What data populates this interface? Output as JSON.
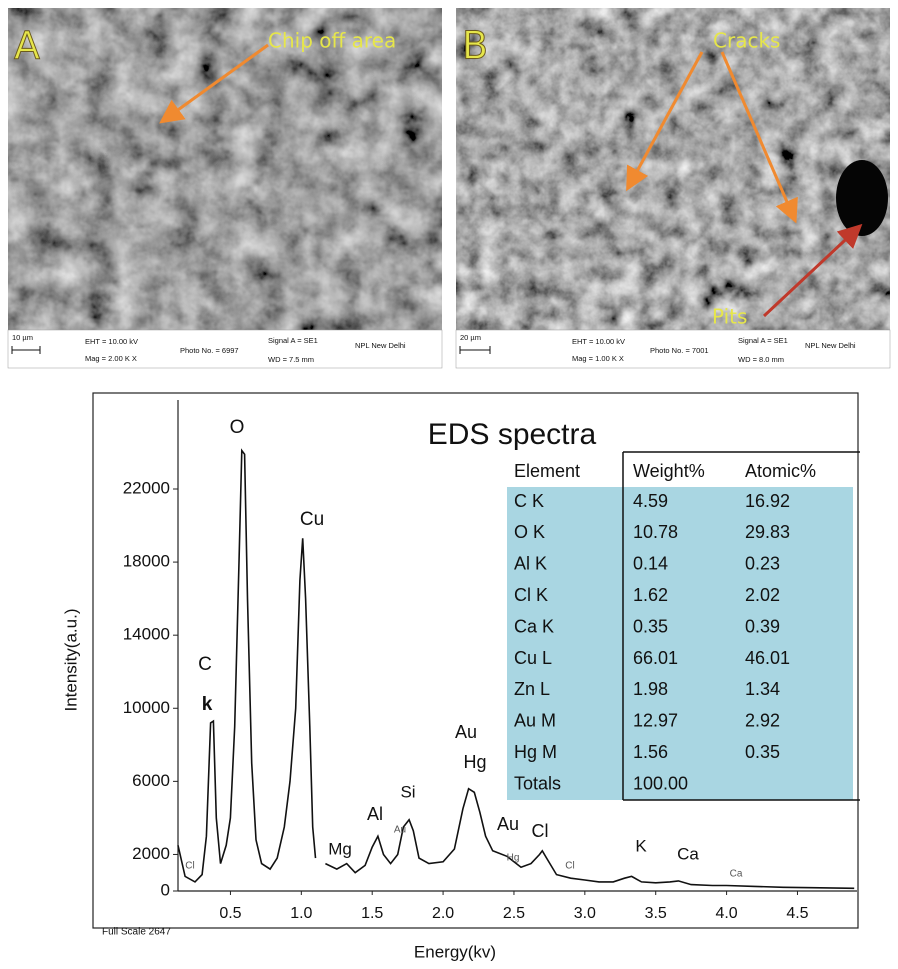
{
  "panels": [
    {
      "label": "A",
      "annotations": [
        "Chip off area"
      ],
      "scale_bar": "10 µm",
      "info": [
        "EHT = 10.00 kV",
        "Mag =  2.00 K X",
        "Photo No. = 6997",
        "Signal A = SE1",
        "WD =  7.5 mm",
        "NPL New Delhi"
      ]
    },
    {
      "label": "B",
      "annotations": [
        "Cracks",
        "Pits"
      ],
      "scale_bar": "20 µm",
      "info": [
        "EHT = 10.00 kV",
        "Mag =  1.00 K X",
        "Photo No. = 7001",
        "Signal A = SE1",
        "WD =  8.0 mm",
        "NPL New Delhi"
      ]
    }
  ],
  "chart_data": {
    "type": "line",
    "title": "EDS spectra",
    "x_label": "Energy(kv)",
    "y_label": "Intensity(a.u.)",
    "footer": "Full Scale 2647",
    "color": "#111111",
    "x": [
      0.13,
      0.18,
      0.25,
      0.3,
      0.33,
      0.36,
      0.38,
      0.4,
      0.43,
      0.47,
      0.5,
      0.53,
      0.56,
      0.58,
      0.6,
      0.62,
      0.65,
      0.68,
      0.72,
      0.78,
      0.83,
      0.88,
      0.92,
      0.96,
      0.99,
      1.01,
      1.03,
      1.06,
      1.08,
      1.1,
      1.13,
      1.17,
      1.25,
      1.32,
      1.38,
      1.45,
      1.5,
      1.54,
      1.58,
      1.63,
      1.68,
      1.72,
      1.76,
      1.79,
      1.83,
      1.9,
      2.0,
      2.08,
      2.14,
      2.18,
      2.22,
      2.26,
      2.3,
      2.35,
      2.45,
      2.55,
      2.62,
      2.68,
      2.7,
      2.73,
      2.8,
      2.9,
      3.0,
      3.1,
      3.2,
      3.28,
      3.33,
      3.4,
      3.5,
      3.6,
      3.66,
      3.75,
      3.9,
      4.0,
      4.2,
      4.4,
      4.6,
      4.9
    ],
    "values": [
      2500,
      800,
      500,
      900,
      3000,
      9200,
      9300,
      4000,
      1500,
      2500,
      4000,
      9000,
      18000,
      24100,
      23900,
      16000,
      7000,
      2800,
      1500,
      1200,
      1800,
      3500,
      6000,
      10000,
      17000,
      19300,
      16000,
      9000,
      3500,
      1800,
      null,
      1500,
      1200,
      1500,
      1000,
      1400,
      2400,
      3000,
      2000,
      1500,
      2000,
      3500,
      3900,
      3300,
      1800,
      1500,
      1600,
      2300,
      4500,
      5600,
      5400,
      4300,
      3000,
      2200,
      1900,
      1300,
      1500,
      2000,
      2200,
      1800,
      900,
      700,
      600,
      500,
      500,
      700,
      800,
      500,
      450,
      500,
      550,
      350,
      300,
      300,
      250,
      200,
      180,
      150
    ],
    "xlim": [
      0.13,
      4.92
    ],
    "ylim": [
      0,
      26870
    ],
    "xticks": [
      0.5,
      {
        "value": 1,
        "label": "1.0"
      },
      1.5,
      {
        "value": 2,
        "label": "2.0"
      },
      2.5,
      {
        "value": 3,
        "label": "3.0"
      },
      3.5,
      {
        "value": 4,
        "label": "4.0"
      },
      4.5
    ],
    "yticks": [
      0,
      2000,
      6000,
      10000,
      14000,
      18000,
      22000
    ],
    "annotations": [
      "O",
      "Cu",
      "C",
      "k",
      "Mg",
      "Al",
      "Si",
      "Au",
      "Hg",
      "Au",
      "Cl",
      "K",
      "Ca",
      "Cl",
      "Au",
      "Hg",
      "Cl",
      "Ca"
    ]
  },
  "table": {
    "columns": [
      "Element",
      "Weight%",
      "Atomic%"
    ],
    "rows": [
      [
        "C K",
        "4.59",
        "16.92"
      ],
      [
        "O K",
        "10.78",
        "29.83"
      ],
      [
        "Al K",
        "0.14",
        "0.23"
      ],
      [
        "Cl K",
        "1.62",
        "2.02"
      ],
      [
        "Ca K",
        "0.35",
        "0.39"
      ],
      [
        "Cu L",
        "66.01",
        "46.01"
      ],
      [
        "Zn L",
        "1.98",
        "1.34"
      ],
      [
        "Au M",
        "12.97",
        "2.92"
      ],
      [
        "Hg M",
        "1.56",
        "0.35"
      ],
      [
        "Totals",
        "100.00"
      ]
    ]
  }
}
